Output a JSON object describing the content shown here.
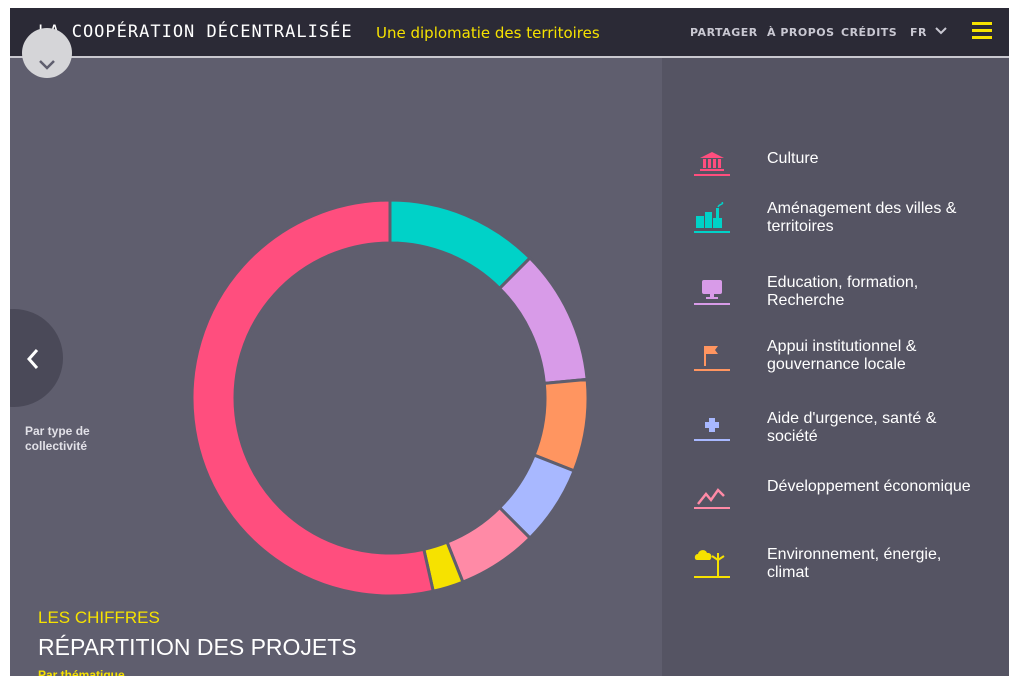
{
  "header": {
    "brand": "LA COOPÉRATION DÉCENTRALISÉE",
    "tagline": "Une diplomatie des territoires",
    "nav": [
      "PARTAGER",
      "À PROPOS",
      "CRÉDITS",
      "FR"
    ]
  },
  "prev_panel": {
    "label": "Par type de collectivité"
  },
  "section": {
    "kicker": "LES CHIFFRES",
    "title": "RÉPARTITION DES PROJETS",
    "subtitle": "Par thématique"
  },
  "legend": [
    {
      "label": "Culture",
      "icon": "museum-icon",
      "color": "#ff4e7e"
    },
    {
      "label": "Aménagement des villes & territoires",
      "icon": "city-icon",
      "color": "#00d2c8"
    },
    {
      "label": "Education, formation, Recherche",
      "icon": "computer-icon",
      "color": "#d89be8"
    },
    {
      "label": "Appui institutionnel & gouvernance locale",
      "icon": "flag-icon",
      "color": "#ff9560"
    },
    {
      "label": "Aide d'urgence, santé & société",
      "icon": "medical-cross-icon",
      "color": "#a8b8ff"
    },
    {
      "label": "Développement économique",
      "icon": "growth-chart-icon",
      "color": "#ff8aa6"
    },
    {
      "label": "Environnement, énergie, climat",
      "icon": "weather-wind-turbine-icon",
      "color": "#f6e200"
    }
  ],
  "chart_data": {
    "type": "pie",
    "style": "donut",
    "start_category": "Aménagement des villes & territoires",
    "categories": [
      "Aménagement des villes & territoires",
      "Education, formation, Recherche",
      "Appui institutionnel & gouvernance locale",
      "Aide d'urgence, santé & société",
      "Développement économique",
      "Environnement, énergie, climat",
      "Culture"
    ],
    "values": [
      12.5,
      11,
      7.5,
      6.5,
      6.5,
      2.5,
      53.5
    ],
    "colors": [
      "#00d2c8",
      "#d89be8",
      "#ff9560",
      "#a8b8ff",
      "#ff8aa6",
      "#f6e200",
      "#ff4e7e"
    ]
  }
}
